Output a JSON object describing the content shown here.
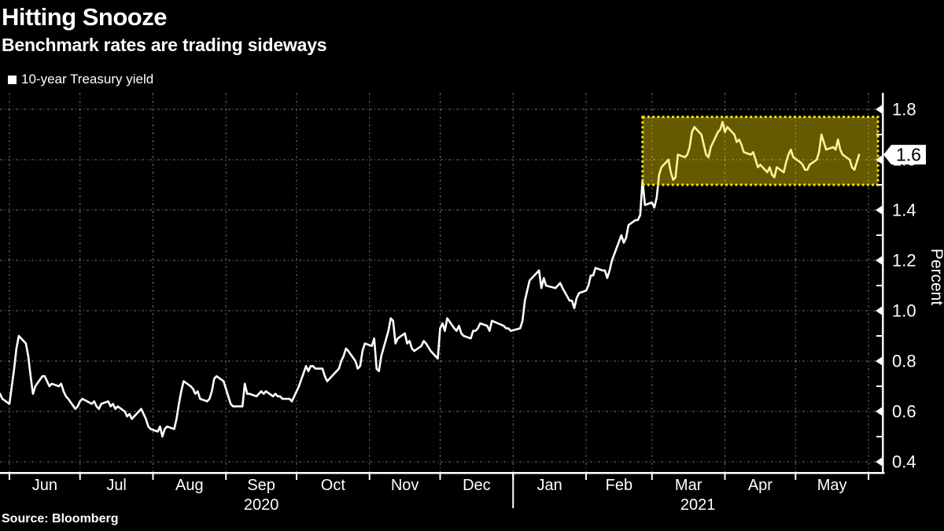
{
  "header": {
    "title": "Hitting Snooze",
    "subtitle": "Benchmark rates are trading sideways"
  },
  "legend": {
    "label": "10-year Treasury yield",
    "marker_color": "#ffffff"
  },
  "source": {
    "label": "Source: Bloomberg"
  },
  "colors": {
    "background": "#000000",
    "text": "#ffffff",
    "grid": "#8a8a8a",
    "axis": "#ffffff",
    "line": "#ffffff",
    "highlight_border": "#f0e000",
    "highlight_fill": "rgba(255,224,0,0.40)",
    "marker_bg": "#ffffff",
    "marker_text": "#000000"
  },
  "chart_data": {
    "type": "line",
    "title": "Hitting Snooze",
    "subtitle": "Benchmark rates are trading sideways",
    "xlabel": "",
    "ylabel": "Percent",
    "legend_position": "top-left",
    "grid": "dashed",
    "ylim": [
      0.359375,
      1.865625
    ],
    "yticks": [
      0.4,
      0.6,
      0.8,
      1.0,
      1.2,
      1.4,
      1.6,
      1.8
    ],
    "minor_yticks": [
      0.5,
      0.7,
      0.9,
      1.1,
      1.3,
      1.5,
      1.7
    ],
    "xlim": [
      "2020-05-28",
      "2021-06-07"
    ],
    "month_boundaries": [
      "2020-06-01",
      "2020-07-01",
      "2020-08-01",
      "2020-09-01",
      "2020-10-01",
      "2020-11-01",
      "2020-12-01",
      "2021-01-01",
      "2021-02-01",
      "2021-03-01",
      "2021-04-01",
      "2021-05-01",
      "2021-06-01"
    ],
    "month_labels": [
      "Jun",
      "Jul",
      "Aug",
      "Sep",
      "Oct",
      "Nov",
      "Dec",
      "Jan",
      "Feb",
      "Mar",
      "Apr",
      "May"
    ],
    "year_labels": [
      {
        "label": "2020",
        "from": "2020-06-01",
        "to": "2021-01-01"
      },
      {
        "label": "2021",
        "from": "2021-01-01",
        "to": "2021-06-07"
      }
    ],
    "year_separator": "2021-01-01",
    "highlight_box": {
      "from_date": "2021-02-25",
      "to_date": "2021-06-05",
      "from_value": 1.5,
      "to_value": 1.77
    },
    "last_value_marker": {
      "label": "1.6",
      "value": 1.62
    },
    "series": [
      {
        "name": "10-year Treasury yield",
        "color": "#ffffff",
        "points": [
          [
            "2020-05-28",
            0.67
          ],
          [
            "2020-05-29",
            0.65
          ],
          [
            "2020-06-01",
            0.63
          ],
          [
            "2020-06-02",
            0.7
          ],
          [
            "2020-06-03",
            0.77
          ],
          [
            "2020-06-04",
            0.85
          ],
          [
            "2020-06-05",
            0.9
          ],
          [
            "2020-06-08",
            0.87
          ],
          [
            "2020-06-09",
            0.82
          ],
          [
            "2020-06-10",
            0.74
          ],
          [
            "2020-06-11",
            0.67
          ],
          [
            "2020-06-12",
            0.7
          ],
          [
            "2020-06-15",
            0.74
          ],
          [
            "2020-06-16",
            0.74
          ],
          [
            "2020-06-17",
            0.72
          ],
          [
            "2020-06-18",
            0.7
          ],
          [
            "2020-06-19",
            0.71
          ],
          [
            "2020-06-22",
            0.7
          ],
          [
            "2020-06-23",
            0.71
          ],
          [
            "2020-06-24",
            0.68
          ],
          [
            "2020-06-25",
            0.66
          ],
          [
            "2020-06-26",
            0.65
          ],
          [
            "2020-06-29",
            0.61
          ],
          [
            "2020-06-30",
            0.62
          ],
          [
            "2020-07-01",
            0.64
          ],
          [
            "2020-07-02",
            0.65
          ],
          [
            "2020-07-06",
            0.63
          ],
          [
            "2020-07-07",
            0.64
          ],
          [
            "2020-07-08",
            0.62
          ],
          [
            "2020-07-09",
            0.61
          ],
          [
            "2020-07-10",
            0.63
          ],
          [
            "2020-07-13",
            0.64
          ],
          [
            "2020-07-14",
            0.62
          ],
          [
            "2020-07-15",
            0.63
          ],
          [
            "2020-07-16",
            0.61
          ],
          [
            "2020-07-17",
            0.62
          ],
          [
            "2020-07-20",
            0.6
          ],
          [
            "2020-07-21",
            0.58
          ],
          [
            "2020-07-22",
            0.59
          ],
          [
            "2020-07-23",
            0.57
          ],
          [
            "2020-07-24",
            0.58
          ],
          [
            "2020-07-27",
            0.61
          ],
          [
            "2020-07-28",
            0.59
          ],
          [
            "2020-07-29",
            0.57
          ],
          [
            "2020-07-30",
            0.54
          ],
          [
            "2020-07-31",
            0.53
          ],
          [
            "2020-08-03",
            0.52
          ],
          [
            "2020-08-04",
            0.54
          ],
          [
            "2020-08-05",
            0.5
          ],
          [
            "2020-08-06",
            0.53
          ],
          [
            "2020-08-07",
            0.54
          ],
          [
            "2020-08-10",
            0.53
          ],
          [
            "2020-08-11",
            0.57
          ],
          [
            "2020-08-12",
            0.63
          ],
          [
            "2020-08-13",
            0.68
          ],
          [
            "2020-08-14",
            0.72
          ],
          [
            "2020-08-17",
            0.7
          ],
          [
            "2020-08-18",
            0.69
          ],
          [
            "2020-08-19",
            0.67
          ],
          [
            "2020-08-20",
            0.68
          ],
          [
            "2020-08-21",
            0.65
          ],
          [
            "2020-08-24",
            0.64
          ],
          [
            "2020-08-25",
            0.65
          ],
          [
            "2020-08-26",
            0.68
          ],
          [
            "2020-08-27",
            0.73
          ],
          [
            "2020-08-28",
            0.74
          ],
          [
            "2020-08-31",
            0.72
          ],
          [
            "2020-09-01",
            0.69
          ],
          [
            "2020-09-02",
            0.66
          ],
          [
            "2020-09-03",
            0.63
          ],
          [
            "2020-09-04",
            0.62
          ],
          [
            "2020-09-08",
            0.62
          ],
          [
            "2020-09-09",
            0.71
          ],
          [
            "2020-09-10",
            0.67
          ],
          [
            "2020-09-11",
            0.67
          ],
          [
            "2020-09-14",
            0.66
          ],
          [
            "2020-09-15",
            0.67
          ],
          [
            "2020-09-16",
            0.68
          ],
          [
            "2020-09-17",
            0.67
          ],
          [
            "2020-09-18",
            0.68
          ],
          [
            "2020-09-21",
            0.66
          ],
          [
            "2020-09-22",
            0.67
          ],
          [
            "2020-09-23",
            0.66
          ],
          [
            "2020-09-24",
            0.66
          ],
          [
            "2020-09-25",
            0.65
          ],
          [
            "2020-09-28",
            0.65
          ],
          [
            "2020-09-29",
            0.64
          ],
          [
            "2020-09-30",
            0.66
          ],
          [
            "2020-10-01",
            0.68
          ],
          [
            "2020-10-02",
            0.7
          ],
          [
            "2020-10-05",
            0.78
          ],
          [
            "2020-10-06",
            0.76
          ],
          [
            "2020-10-07",
            0.78
          ],
          [
            "2020-10-08",
            0.78
          ],
          [
            "2020-10-09",
            0.77
          ],
          [
            "2020-10-12",
            0.77
          ],
          [
            "2020-10-13",
            0.74
          ],
          [
            "2020-10-14",
            0.72
          ],
          [
            "2020-10-15",
            0.73
          ],
          [
            "2020-10-16",
            0.74
          ],
          [
            "2020-10-19",
            0.77
          ],
          [
            "2020-10-20",
            0.8
          ],
          [
            "2020-10-21",
            0.82
          ],
          [
            "2020-10-22",
            0.85
          ],
          [
            "2020-10-23",
            0.84
          ],
          [
            "2020-10-26",
            0.8
          ],
          [
            "2020-10-27",
            0.77
          ],
          [
            "2020-10-28",
            0.78
          ],
          [
            "2020-10-29",
            0.84
          ],
          [
            "2020-10-30",
            0.87
          ],
          [
            "2020-11-02",
            0.86
          ],
          [
            "2020-11-03",
            0.89
          ],
          [
            "2020-11-04",
            0.77
          ],
          [
            "2020-11-05",
            0.76
          ],
          [
            "2020-11-06",
            0.82
          ],
          [
            "2020-11-09",
            0.92
          ],
          [
            "2020-11-10",
            0.97
          ],
          [
            "2020-11-11",
            0.96
          ],
          [
            "2020-11-12",
            0.87
          ],
          [
            "2020-11-13",
            0.89
          ],
          [
            "2020-11-16",
            0.91
          ],
          [
            "2020-11-17",
            0.87
          ],
          [
            "2020-11-18",
            0.88
          ],
          [
            "2020-11-19",
            0.85
          ],
          [
            "2020-11-20",
            0.84
          ],
          [
            "2020-11-23",
            0.86
          ],
          [
            "2020-11-24",
            0.88
          ],
          [
            "2020-11-25",
            0.87
          ],
          [
            "2020-11-27",
            0.84
          ],
          [
            "2020-11-30",
            0.81
          ],
          [
            "2020-12-01",
            0.93
          ],
          [
            "2020-12-02",
            0.95
          ],
          [
            "2020-12-03",
            0.92
          ],
          [
            "2020-12-04",
            0.97
          ],
          [
            "2020-12-07",
            0.93
          ],
          [
            "2020-12-08",
            0.92
          ],
          [
            "2020-12-09",
            0.94
          ],
          [
            "2020-12-10",
            0.91
          ],
          [
            "2020-12-11",
            0.9
          ],
          [
            "2020-12-14",
            0.89
          ],
          [
            "2020-12-15",
            0.92
          ],
          [
            "2020-12-16",
            0.92
          ],
          [
            "2020-12-17",
            0.93
          ],
          [
            "2020-12-18",
            0.95
          ],
          [
            "2020-12-21",
            0.94
          ],
          [
            "2020-12-22",
            0.92
          ],
          [
            "2020-12-23",
            0.96
          ],
          [
            "2020-12-28",
            0.94
          ],
          [
            "2020-12-29",
            0.93
          ],
          [
            "2020-12-30",
            0.93
          ],
          [
            "2020-12-31",
            0.92
          ],
          [
            "2021-01-04",
            0.93
          ],
          [
            "2021-01-05",
            0.96
          ],
          [
            "2021-01-06",
            1.04
          ],
          [
            "2021-01-07",
            1.08
          ],
          [
            "2021-01-08",
            1.12
          ],
          [
            "2021-01-11",
            1.15
          ],
          [
            "2021-01-12",
            1.16
          ],
          [
            "2021-01-13",
            1.09
          ],
          [
            "2021-01-14",
            1.13
          ],
          [
            "2021-01-15",
            1.1
          ],
          [
            "2021-01-19",
            1.09
          ],
          [
            "2021-01-20",
            1.1
          ],
          [
            "2021-01-21",
            1.11
          ],
          [
            "2021-01-22",
            1.09
          ],
          [
            "2021-01-25",
            1.04
          ],
          [
            "2021-01-26",
            1.04
          ],
          [
            "2021-01-27",
            1.01
          ],
          [
            "2021-01-28",
            1.05
          ],
          [
            "2021-01-29",
            1.07
          ],
          [
            "2021-02-01",
            1.08
          ],
          [
            "2021-02-02",
            1.1
          ],
          [
            "2021-02-03",
            1.14
          ],
          [
            "2021-02-04",
            1.14
          ],
          [
            "2021-02-05",
            1.17
          ],
          [
            "2021-02-08",
            1.16
          ],
          [
            "2021-02-09",
            1.16
          ],
          [
            "2021-02-10",
            1.13
          ],
          [
            "2021-02-11",
            1.16
          ],
          [
            "2021-02-12",
            1.2
          ],
          [
            "2021-02-16",
            1.3
          ],
          [
            "2021-02-17",
            1.27
          ],
          [
            "2021-02-18",
            1.29
          ],
          [
            "2021-02-19",
            1.34
          ],
          [
            "2021-02-22",
            1.36
          ],
          [
            "2021-02-23",
            1.36
          ],
          [
            "2021-02-24",
            1.38
          ],
          [
            "2021-02-25",
            1.52
          ],
          [
            "2021-02-26",
            1.42
          ],
          [
            "2021-03-01",
            1.43
          ],
          [
            "2021-03-02",
            1.41
          ],
          [
            "2021-03-03",
            1.45
          ],
          [
            "2021-03-04",
            1.54
          ],
          [
            "2021-03-05",
            1.57
          ],
          [
            "2021-03-08",
            1.6
          ],
          [
            "2021-03-09",
            1.55
          ],
          [
            "2021-03-10",
            1.52
          ],
          [
            "2021-03-11",
            1.53
          ],
          [
            "2021-03-12",
            1.62
          ],
          [
            "2021-03-15",
            1.61
          ],
          [
            "2021-03-16",
            1.62
          ],
          [
            "2021-03-17",
            1.65
          ],
          [
            "2021-03-18",
            1.71
          ],
          [
            "2021-03-19",
            1.73
          ],
          [
            "2021-03-22",
            1.7
          ],
          [
            "2021-03-23",
            1.66
          ],
          [
            "2021-03-24",
            1.62
          ],
          [
            "2021-03-25",
            1.61
          ],
          [
            "2021-03-26",
            1.65
          ],
          [
            "2021-03-29",
            1.71
          ],
          [
            "2021-03-30",
            1.72
          ],
          [
            "2021-03-31",
            1.75
          ],
          [
            "2021-04-01",
            1.71
          ],
          [
            "2021-04-02",
            1.73
          ],
          [
            "2021-04-05",
            1.7
          ],
          [
            "2021-04-06",
            1.67
          ],
          [
            "2021-04-07",
            1.68
          ],
          [
            "2021-04-08",
            1.66
          ],
          [
            "2021-04-09",
            1.63
          ],
          [
            "2021-04-12",
            1.62
          ],
          [
            "2021-04-13",
            1.63
          ],
          [
            "2021-04-14",
            1.6
          ],
          [
            "2021-04-15",
            1.57
          ],
          [
            "2021-04-16",
            1.58
          ],
          [
            "2021-04-19",
            1.55
          ],
          [
            "2021-04-20",
            1.57
          ],
          [
            "2021-04-21",
            1.54
          ],
          [
            "2021-04-22",
            1.53
          ],
          [
            "2021-04-23",
            1.57
          ],
          [
            "2021-04-26",
            1.55
          ],
          [
            "2021-04-27",
            1.59
          ],
          [
            "2021-04-28",
            1.62
          ],
          [
            "2021-04-29",
            1.64
          ],
          [
            "2021-04-30",
            1.61
          ],
          [
            "2021-05-03",
            1.59
          ],
          [
            "2021-05-04",
            1.58
          ],
          [
            "2021-05-05",
            1.56
          ],
          [
            "2021-05-06",
            1.56
          ],
          [
            "2021-05-07",
            1.58
          ],
          [
            "2021-05-10",
            1.6
          ],
          [
            "2021-05-11",
            1.63
          ],
          [
            "2021-05-12",
            1.7
          ],
          [
            "2021-05-13",
            1.67
          ],
          [
            "2021-05-14",
            1.64
          ],
          [
            "2021-05-17",
            1.65
          ],
          [
            "2021-05-18",
            1.64
          ],
          [
            "2021-05-19",
            1.68
          ],
          [
            "2021-05-20",
            1.64
          ],
          [
            "2021-05-21",
            1.62
          ],
          [
            "2021-05-24",
            1.6
          ],
          [
            "2021-05-25",
            1.57
          ],
          [
            "2021-05-26",
            1.56
          ],
          [
            "2021-05-27",
            1.59
          ],
          [
            "2021-05-28",
            1.62
          ]
        ]
      }
    ]
  }
}
